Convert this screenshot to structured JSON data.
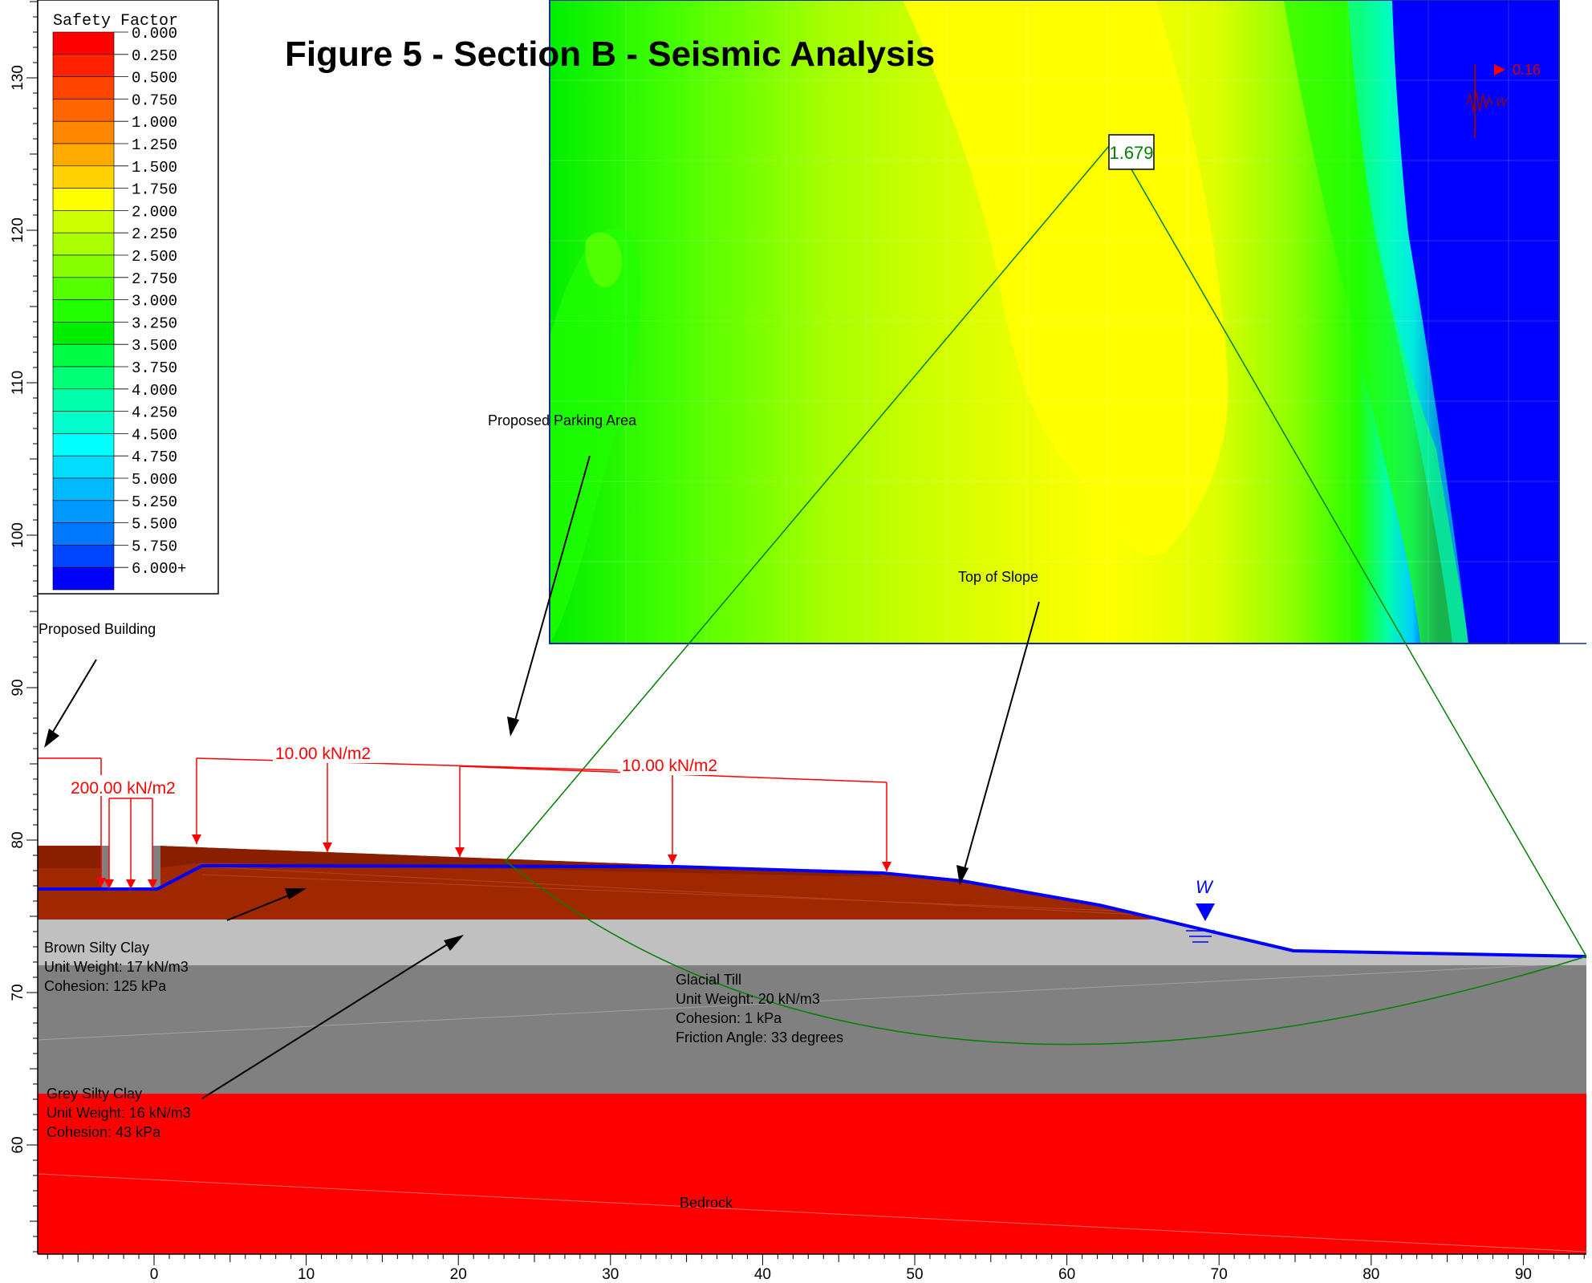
{
  "title": "Figure 5 - Section B - Seismic Analysis",
  "legend": {
    "title": "Safety Factor",
    "entries": [
      {
        "label": "0.000",
        "color": "#ff0000"
      },
      {
        "label": "0.250",
        "color": "#ff2200"
      },
      {
        "label": "0.500",
        "color": "#ff4400"
      },
      {
        "label": "0.750",
        "color": "#ff6600"
      },
      {
        "label": "1.000",
        "color": "#ff8800"
      },
      {
        "label": "1.250",
        "color": "#ffaa00"
      },
      {
        "label": "1.500",
        "color": "#ffd200"
      },
      {
        "label": "1.750",
        "color": "#ffff00"
      },
      {
        "label": "2.000",
        "color": "#ccff00"
      },
      {
        "label": "2.250",
        "color": "#aaff00"
      },
      {
        "label": "2.500",
        "color": "#88ff00"
      },
      {
        "label": "2.750",
        "color": "#55ff00"
      },
      {
        "label": "3.000",
        "color": "#22ff00"
      },
      {
        "label": "3.250",
        "color": "#00ee00"
      },
      {
        "label": "3.500",
        "color": "#00ff44"
      },
      {
        "label": "3.750",
        "color": "#00ff77"
      },
      {
        "label": "4.000",
        "color": "#00ffaa"
      },
      {
        "label": "4.250",
        "color": "#00ffcc"
      },
      {
        "label": "4.500",
        "color": "#00ffff"
      },
      {
        "label": "4.750",
        "color": "#00ddff"
      },
      {
        "label": "5.000",
        "color": "#00bbff"
      },
      {
        "label": "5.250",
        "color": "#0099ff"
      },
      {
        "label": "5.500",
        "color": "#0077ff"
      },
      {
        "label": "5.750",
        "color": "#0044ff"
      },
      {
        "label": "6.000+",
        "color": "#0000ff"
      }
    ]
  },
  "axes": {
    "x_ticks": [
      "0",
      "10",
      "20",
      "30",
      "40",
      "50",
      "60",
      "70",
      "80",
      "90"
    ],
    "y_ticks": [
      "60",
      "70",
      "80",
      "90",
      "100",
      "110",
      "120",
      "130"
    ]
  },
  "annotations": {
    "proposed_building": "Proposed Building",
    "proposed_parking": "Proposed Parking Area",
    "top_of_slope": "Top of Slope",
    "water_marker": "W",
    "seismic_coefficient": "0.16",
    "seismic_w": "W",
    "safety_factor": "1.679"
  },
  "loads": {
    "building": "200.00 kN/m2",
    "parking_1": "10.00 kN/m2",
    "parking_2": "10.00 kN/m2"
  },
  "materials": {
    "brown": {
      "name": "Brown Silty Clay",
      "line1": "Unit Weight: 17 kN/m3",
      "line2": "Cohesion: 125 kPa"
    },
    "grey": {
      "name": "Grey Silty Clay",
      "line1": "Unit Weight: 16 kN/m3",
      "line2": "Cohesion: 43 kPa"
    },
    "till": {
      "name": "Glacial Till",
      "line1": "Unit Weight: 20 kN/m3",
      "line2": "Cohesion: 1 kPa",
      "line3": "Friction Angle: 33 degrees"
    },
    "bedrock": {
      "name": "Bedrock"
    }
  },
  "colors": {
    "brown_clay": "#a02800",
    "brown_clay_dark": "#8a1f00",
    "grey_clay": "#c0c0c0",
    "glacial_till": "#808080",
    "bedrock": "#ff0000",
    "water_table": "#0000ff",
    "slip_surface": "#008000",
    "load": "#ff0000",
    "seismic": "#990000"
  }
}
